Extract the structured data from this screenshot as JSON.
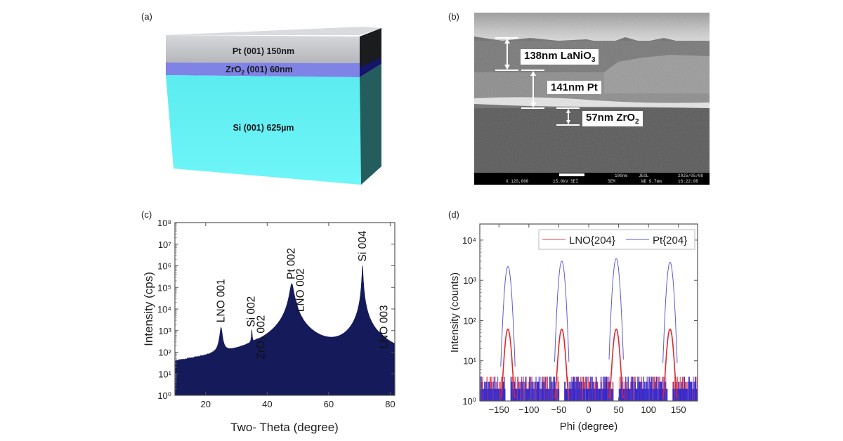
{
  "panels": {
    "a": {
      "label": "(a)",
      "layers": [
        {
          "name": "Pt (001) 150nm",
          "color": "#c4c6ca"
        },
        {
          "name": "ZrO2 (001) 60nm",
          "text_main": "ZrO",
          "text_sub": "2",
          "text_rest": " (001) 60nm",
          "color": "#8486e6"
        },
        {
          "name": "Si (001) 625µm",
          "color": "#62f0f2"
        }
      ]
    },
    "b": {
      "label": "(b)",
      "annotations": [
        {
          "main": "138nm LaNiO",
          "sub": "3"
        },
        {
          "main": "141nm Pt",
          "sub": ""
        },
        {
          "main": "57nm ZrO",
          "sub": "2"
        }
      ],
      "info_bar": {
        "scale": "100nm",
        "brand": "JEOL",
        "date": "2025/05/08",
        "magnification": "X 120,000",
        "voltage": "15.0kV SEI",
        "mode": "SEM",
        "wd": "WD 9.7mm",
        "time": "16:22:08"
      }
    },
    "c": {
      "label": "(c)"
    },
    "d": {
      "label": "(d)"
    }
  },
  "chart_data": [
    {
      "id": "c",
      "type": "line",
      "xlabel": "Two- Theta (degree)",
      "ylabel": "Intensity (cps)",
      "xlim": [
        10,
        81.5
      ],
      "ylim_log10": [
        0,
        8
      ],
      "yscale": "log",
      "xticks": [
        20,
        40,
        60,
        80
      ],
      "yticks": [
        "10⁰",
        "10¹",
        "10²",
        "10³",
        "10⁴",
        "10⁵",
        "10⁶",
        "10⁷",
        "10⁸"
      ],
      "color": "#141a5a",
      "background_log10_max": 0.8,
      "peaks": [
        {
          "label": "LNO 001",
          "x": 25.0,
          "peak": 1300,
          "width": 0.35
        },
        {
          "label": "Si 002",
          "x": 35.0,
          "peak": 800,
          "width": 0.12
        },
        {
          "label": "ZrO₂ 002",
          "x": 36.6,
          "peak": 30,
          "width": 0.6
        },
        {
          "label": "Pt 002",
          "x": 48.0,
          "peak": 150000,
          "width": 0.55
        },
        {
          "label": "LNO 002",
          "x": 49.4,
          "peak": 4000,
          "width": 0.3
        },
        {
          "label": "Si 004",
          "x": 71.0,
          "peak": 1000000,
          "width": 0.15
        },
        {
          "label": "LNO 003",
          "x": 77.0,
          "peak": 80,
          "width": 0.45
        }
      ]
    },
    {
      "id": "d",
      "type": "line",
      "xlabel": "Phi (degree)",
      "ylabel": "Intensity (counts)",
      "xlim": [
        -182,
        182
      ],
      "ylim_log10": [
        0,
        4.4
      ],
      "yscale": "log",
      "xticks": [
        -150,
        -100,
        -50,
        0,
        50,
        100,
        150
      ],
      "yticks": [
        "10⁰",
        "10¹",
        "10²",
        "10³",
        "10⁴"
      ],
      "legend": "top-right",
      "series": [
        {
          "name": "Pt{204}",
          "color": "#2a2ad8",
          "peak_x": [
            -135,
            -45,
            46,
            136
          ],
          "peak_values": [
            2200,
            3000,
            3500,
            2800
          ],
          "width": 3.5
        },
        {
          "name": "LNO{204}",
          "color": "#e0282c",
          "peak_x": [
            -135,
            -45,
            46,
            136
          ],
          "peak_values": [
            60,
            60,
            60,
            60
          ],
          "width": 3.5
        }
      ]
    }
  ]
}
